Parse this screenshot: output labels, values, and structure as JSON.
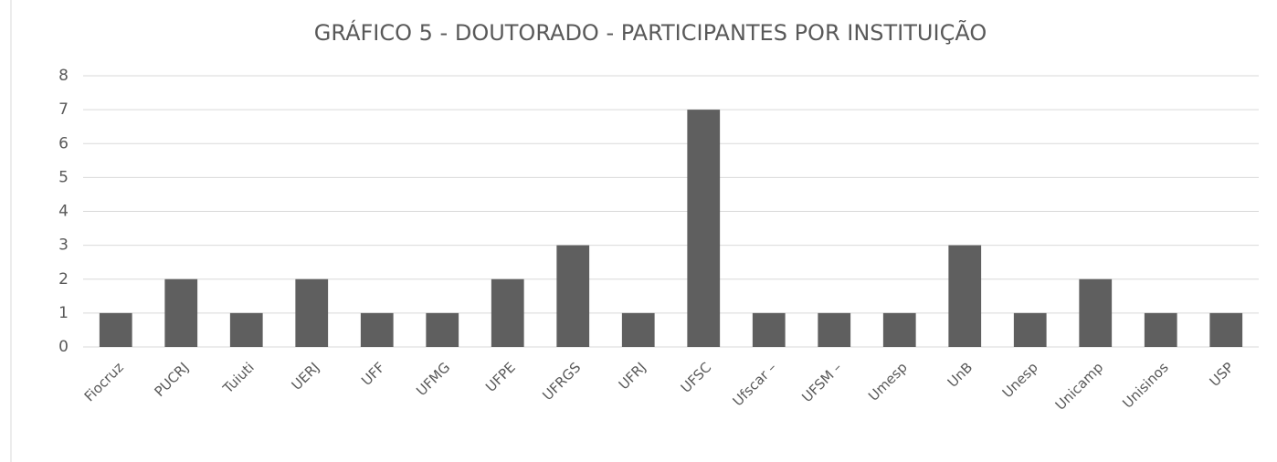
{
  "chart_data": {
    "type": "bar",
    "title": "GRÁFICO 5 - DOUTORADO - PARTICIPANTES POR INSTITUIÇÃO",
    "categories": [
      "Fiocruz",
      "PUCRJ",
      "Tuiuti",
      "UERJ",
      "UFF",
      "UFMG",
      "UFPE",
      "UFRGS",
      "UFRJ",
      "UFSC",
      "Ufscar –",
      "UFSM –",
      "Umesp",
      "UnB",
      "Unesp",
      "Unicamp",
      "Unisinos",
      "USP"
    ],
    "values": [
      1,
      2,
      1,
      2,
      1,
      1,
      2,
      3,
      1,
      7,
      1,
      1,
      1,
      3,
      1,
      2,
      1,
      1
    ],
    "color": "#5f5f5f",
    "ylim": [
      0,
      8
    ],
    "yticks": [
      0,
      1,
      2,
      3,
      4,
      5,
      6,
      7,
      8
    ],
    "grid": true
  }
}
